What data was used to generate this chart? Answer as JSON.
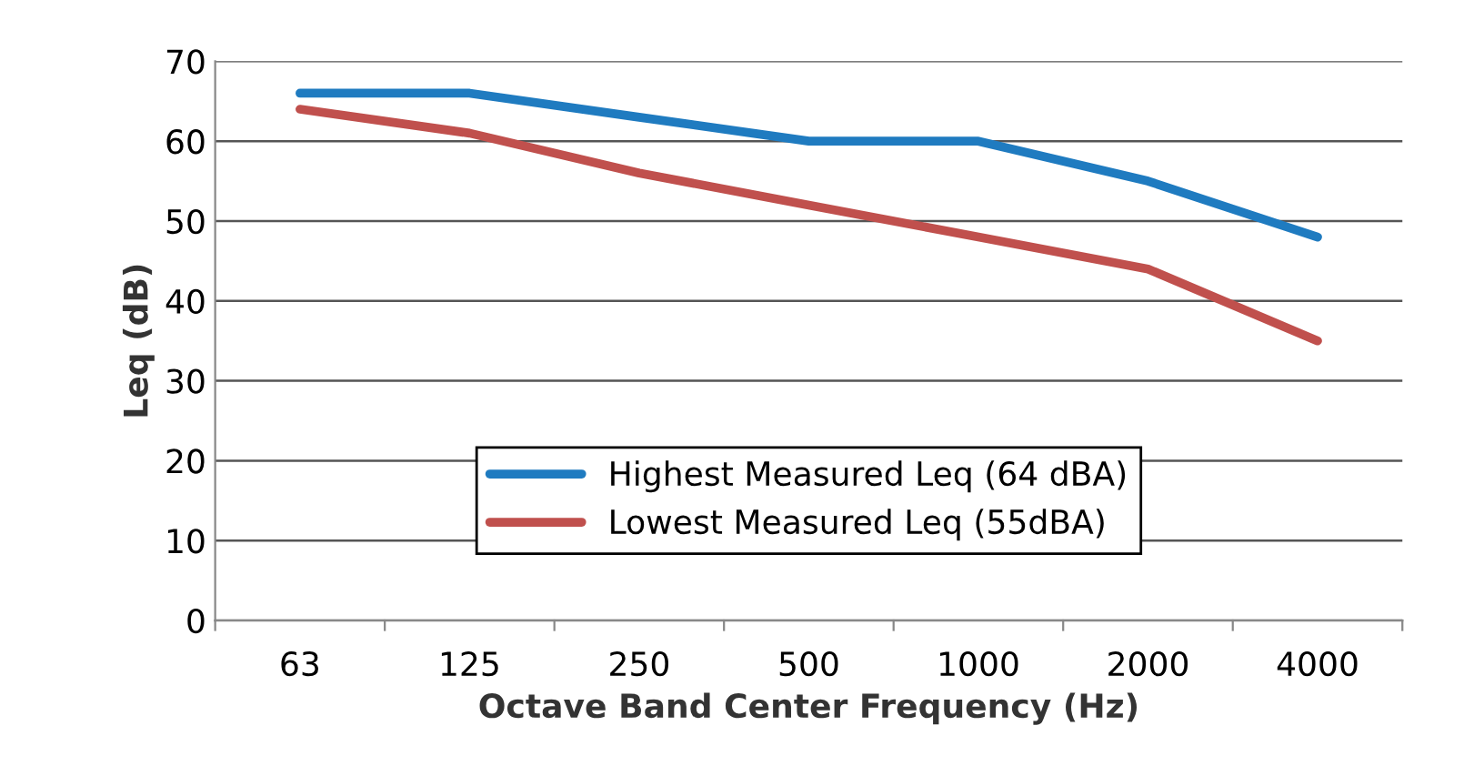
{
  "chart_data": {
    "type": "line",
    "xlabel": "Octave Band Center Frequency (Hz)",
    "ylabel": "Leq (dB)",
    "categories": [
      "63",
      "125",
      "250",
      "500",
      "1000",
      "2000",
      "4000"
    ],
    "series": [
      {
        "name": "Highest Measured Leq (64 dBA)",
        "color": "#1f7bc0",
        "values": [
          66,
          66,
          63,
          60,
          60,
          55,
          48
        ]
      },
      {
        "name": "Lowest Measured Leq (55dBA)",
        "color": "#c0504d",
        "values": [
          64,
          61,
          56,
          52,
          48,
          44,
          35
        ]
      }
    ],
    "ylim": [
      0,
      70
    ],
    "yticks": [
      0,
      10,
      20,
      30,
      40,
      50,
      60,
      70
    ],
    "grid": "y",
    "legend": "bottom",
    "marker": "none",
    "line_style": "solid"
  }
}
